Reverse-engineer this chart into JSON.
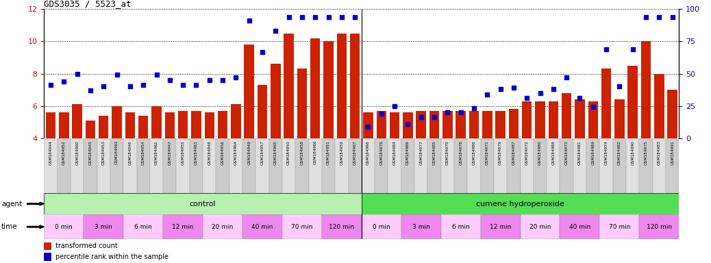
{
  "title": "GDS3035 / 5523_at",
  "samples": [
    "GSM184944",
    "GSM184952",
    "GSM184960",
    "GSM184945",
    "GSM184953",
    "GSM184961",
    "GSM184946",
    "GSM184954",
    "GSM184962",
    "GSM184947",
    "GSM184955",
    "GSM184963",
    "GSM184948",
    "GSM184956",
    "GSM184964",
    "GSM184949",
    "GSM184957",
    "GSM184965",
    "GSM184950",
    "GSM184958",
    "GSM184966",
    "GSM184951",
    "GSM184959",
    "GSM184967",
    "GSM184968",
    "GSM184976",
    "GSM184984",
    "GSM184969",
    "GSM184977",
    "GSM184985",
    "GSM184970",
    "GSM184978",
    "GSM184986",
    "GSM184971",
    "GSM184979",
    "GSM184987",
    "GSM184972",
    "GSM184980",
    "GSM184988",
    "GSM184973",
    "GSM184981",
    "GSM184989",
    "GSM184974",
    "GSM184982",
    "GSM184990",
    "GSM184975",
    "GSM184983",
    "GSM184991"
  ],
  "bar_values": [
    5.6,
    5.6,
    6.1,
    5.1,
    5.4,
    6.0,
    5.6,
    5.4,
    6.0,
    5.6,
    5.7,
    5.7,
    5.6,
    5.7,
    6.1,
    9.8,
    7.3,
    8.6,
    10.5,
    8.3,
    10.2,
    10.0,
    10.5,
    10.5,
    5.6,
    5.7,
    5.6,
    5.6,
    5.7,
    5.7,
    5.7,
    5.7,
    5.7,
    5.7,
    5.7,
    5.8,
    6.3,
    6.3,
    6.3,
    6.8,
    6.4,
    6.3,
    8.3,
    6.4,
    8.5,
    10.0,
    8.0,
    7.0
  ],
  "dot_percentiles": [
    41,
    44,
    50,
    37,
    40,
    49,
    40,
    41,
    49,
    45,
    41,
    41,
    45,
    45,
    47,
    91,
    67,
    83,
    94,
    94,
    94,
    94,
    94,
    94,
    9,
    19,
    25,
    11,
    16,
    16,
    20,
    20,
    23,
    34,
    38,
    39,
    31,
    35,
    38,
    47,
    31,
    24,
    69,
    40,
    69,
    94,
    94,
    94
  ],
  "ylim_left": [
    4,
    12
  ],
  "ylim_right": [
    0,
    100
  ],
  "yticks_left": [
    4,
    6,
    8,
    10,
    12
  ],
  "yticks_right": [
    0,
    25,
    50,
    75,
    100
  ],
  "bar_color": "#cc2200",
  "dot_color": "#0000cc",
  "agent_ctrl_color": "#b8f0b0",
  "agent_cum_color": "#55dd55",
  "time_colors": [
    "#ffccff",
    "#ee88ee"
  ],
  "ctrl_label": "control",
  "cum_label": "cumene hydroperoxide",
  "time_labels": [
    "0 min",
    "3 min",
    "6 min",
    "12 min",
    "20 min",
    "40 min",
    "70 min",
    "120 min"
  ],
  "legend_bar_label": "transformed count",
  "legend_dot_label": "percentile rank within the sample",
  "agent_label": "agent",
  "time_label": "time"
}
